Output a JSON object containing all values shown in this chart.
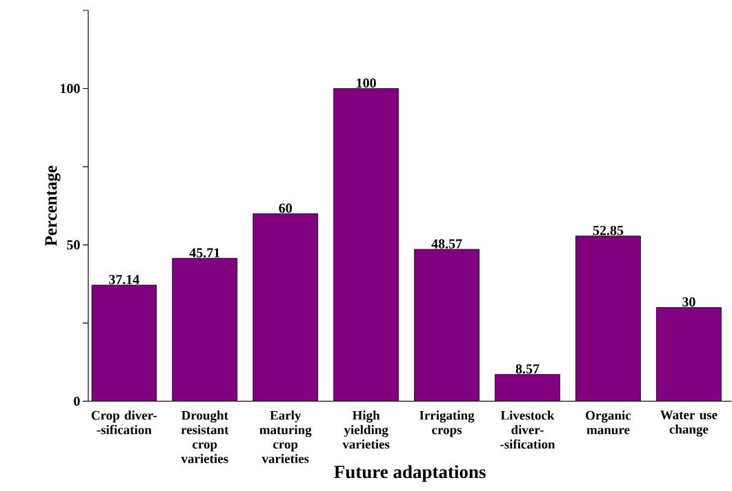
{
  "chart_data": {
    "type": "bar",
    "xlabel": "Future adaptations",
    "ylabel": "Percentage",
    "categories": [
      "Crop diver- -sification",
      "Drought resistant crop varieties",
      "Early maturing crop varieties",
      "High yielding varieties",
      "Irrigating crops",
      "Livestock diver- -sification",
      "Organic manure",
      "Water use change"
    ],
    "values": [
      37.14,
      45.71,
      60,
      100,
      48.57,
      8.57,
      52.85,
      30
    ],
    "color": "#800080",
    "data_labels": true,
    "ylim": [
      0,
      125
    ],
    "yticks": [
      0,
      {
        "value": 25,
        "label": null
      },
      50,
      {
        "value": 75,
        "label": null
      },
      100,
      {
        "value": 125,
        "label": null
      }
    ]
  }
}
